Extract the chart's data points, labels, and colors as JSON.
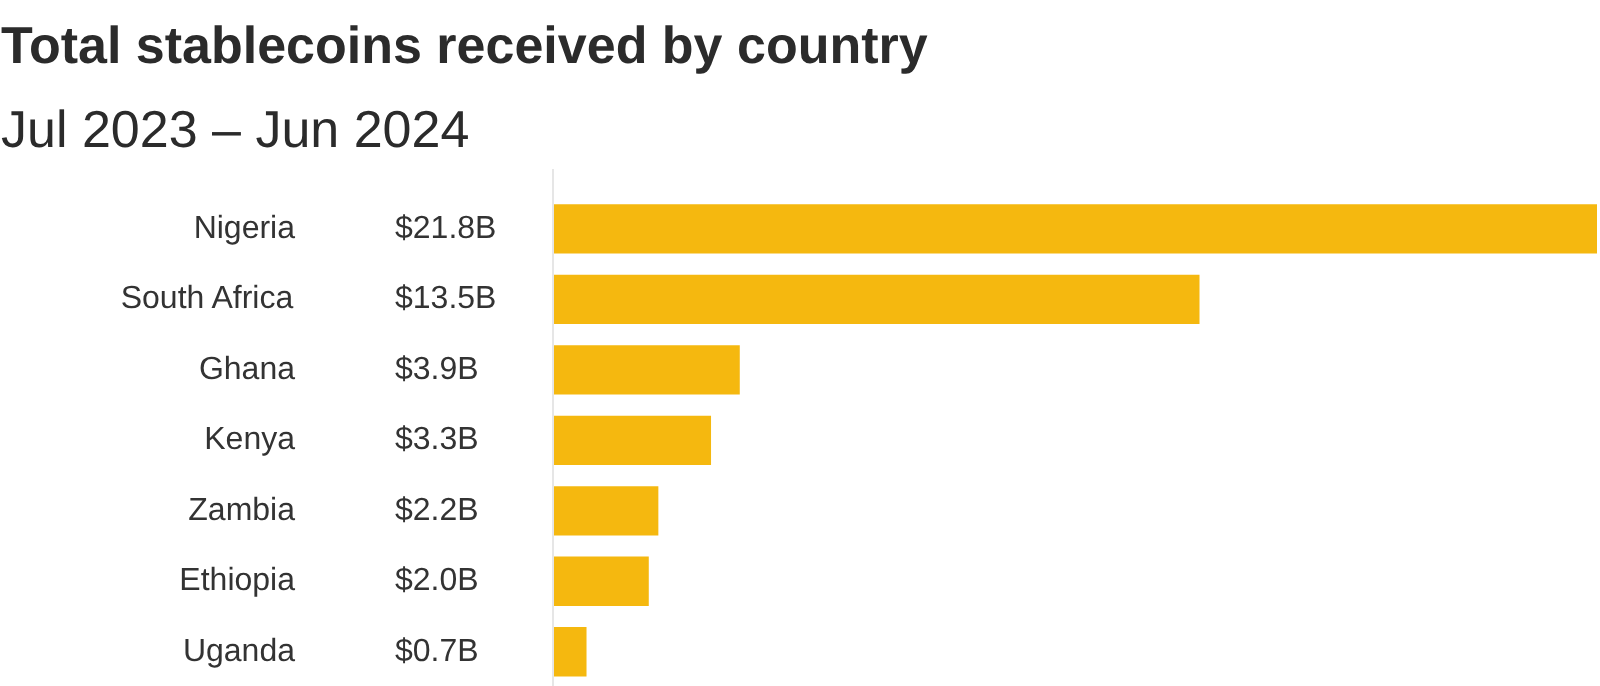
{
  "chart_data": {
    "type": "bar",
    "orientation": "horizontal",
    "title": "Total stablecoins received by country",
    "subtitle": "Jul 2023 – Jun 2024",
    "categories": [
      "Nigeria",
      "South Africa",
      "Ghana",
      "Kenya",
      "Zambia",
      "Ethiopia",
      "Uganda"
    ],
    "values": [
      21.8,
      13.5,
      3.9,
      3.3,
      2.2,
      2.0,
      0.7
    ],
    "value_labels": [
      "$21.8B",
      "$13.5B",
      "$3.9B",
      "$3.3B",
      "$2.2B",
      "$2.0B",
      "$0.7B"
    ],
    "color": "#f5b80f",
    "grid": false
  }
}
